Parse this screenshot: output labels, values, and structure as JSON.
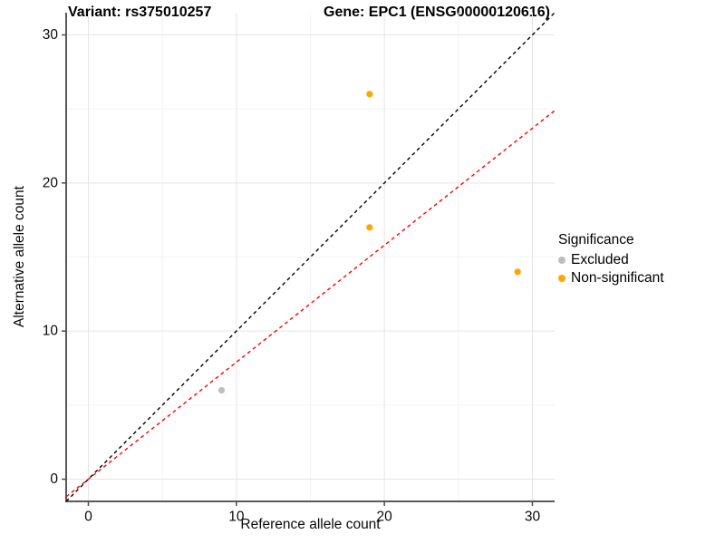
{
  "header": {
    "variant_title": "Variant: rs375010257",
    "gene_title": "Gene: EPC1 (ENSG00000120616)"
  },
  "chart_data": {
    "type": "scatter",
    "xlabel": "Reference allele count",
    "ylabel": "Alternative allele count",
    "xlim": [
      -1.5,
      31.5
    ],
    "ylim": [
      -1.5,
      31.5
    ],
    "xticks": [
      0,
      10,
      20,
      30
    ],
    "yticks": [
      0,
      10,
      20,
      30
    ],
    "xminor": [
      5,
      15,
      25
    ],
    "yminor": [
      5,
      15,
      25
    ],
    "grid": "on",
    "series": [
      {
        "name": "Excluded",
        "color": "#BEBEBE",
        "points": [
          [
            9,
            6
          ]
        ]
      },
      {
        "name": "Non-significant",
        "color": "#FFA500",
        "points": [
          [
            19,
            26
          ],
          [
            19,
            17
          ],
          [
            29,
            14
          ]
        ]
      }
    ],
    "reference_lines": [
      {
        "name": "identity-line",
        "slope": 1,
        "intercept": 0,
        "color": "#000000",
        "style": "dashed"
      },
      {
        "name": "expected-ratio-line",
        "slope": 0.79,
        "intercept": 0,
        "color": "#FF0000",
        "style": "dashed"
      }
    ],
    "legend": {
      "title": "Significance",
      "position": "right",
      "entries": [
        {
          "label": "Excluded",
          "color": "#BEBEBE"
        },
        {
          "label": "Non-significant",
          "color": "#FFA500"
        }
      ]
    },
    "colors": {
      "axis_line": "#595959",
      "tick_mark": "#4d4d4d",
      "grid_major": "#e5e5e5",
      "grid_minor": "#f2f2f2",
      "tick_label": "#0a0a0a"
    }
  }
}
